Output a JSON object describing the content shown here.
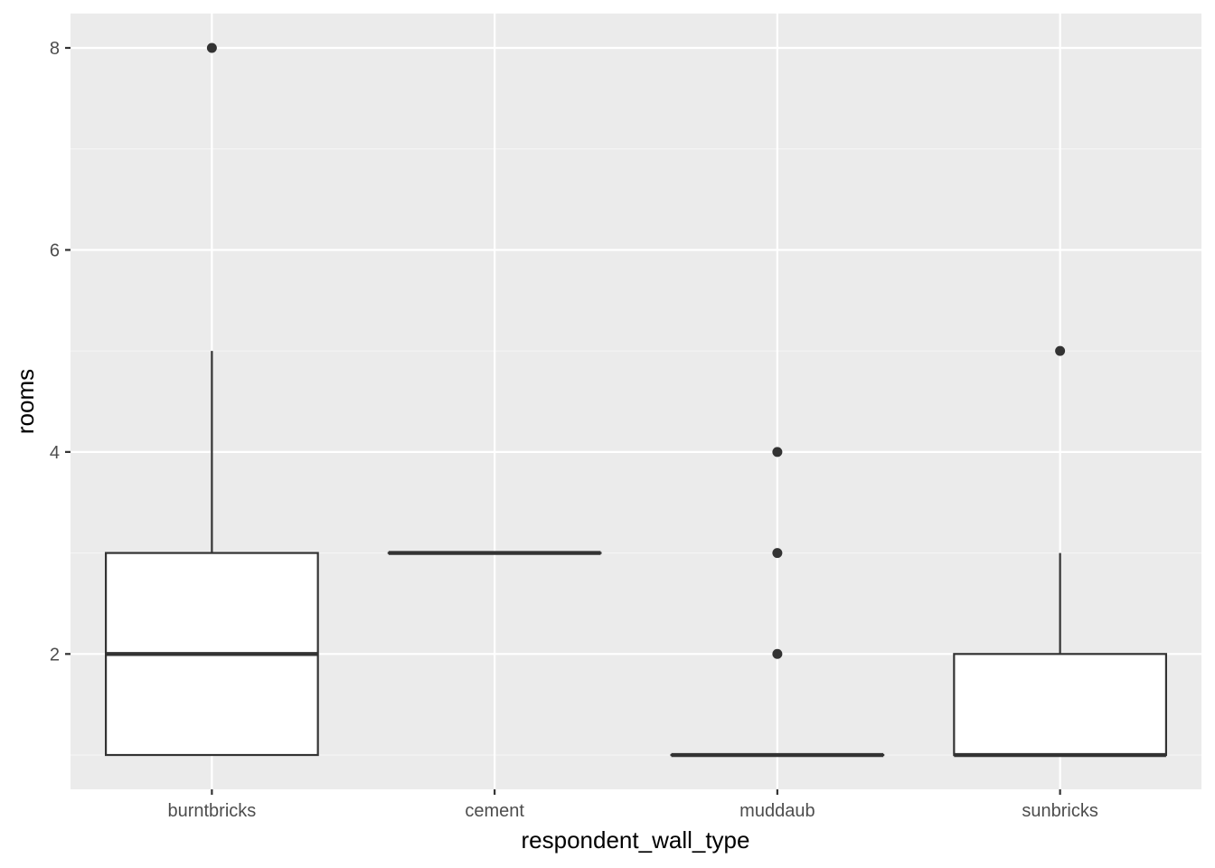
{
  "chart_data": {
    "type": "boxplot",
    "xlabel": "respondent_wall_type",
    "ylabel": "rooms",
    "categories": [
      "burntbricks",
      "cement",
      "muddaub",
      "sunbricks"
    ],
    "boxes": [
      {
        "q1": 1,
        "median": 2,
        "q3": 3,
        "whisker_low": 1,
        "whisker_high": 5,
        "outliers": [
          8
        ]
      },
      {
        "q1": 3,
        "median": 3,
        "q3": 3,
        "whisker_low": 3,
        "whisker_high": 3,
        "outliers": []
      },
      {
        "q1": 1,
        "median": 1,
        "q3": 1,
        "whisker_low": 1,
        "whisker_high": 1,
        "outliers": [
          4,
          3,
          2
        ]
      },
      {
        "q1": 1,
        "median": 1,
        "q3": 2,
        "whisker_low": 1,
        "whisker_high": 3,
        "outliers": [
          5
        ]
      }
    ],
    "yticks": [
      2,
      4,
      6,
      8
    ],
    "ylim": [
      0.66,
      8.34
    ],
    "grid": true,
    "colors": {
      "panel_background": "#ebebeb",
      "grid_major": "#ffffff",
      "grid_minor": "#f5f5f5",
      "box_fill": "#ffffff",
      "box_line": "#333333",
      "tick_text": "#4d4d4d"
    }
  }
}
